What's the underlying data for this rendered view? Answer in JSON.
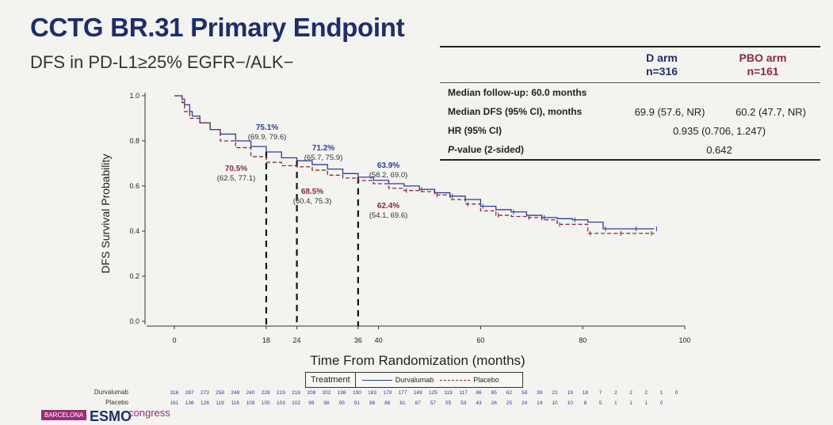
{
  "slide": {
    "title": "CCTG BR.31 Primary Endpoint",
    "subtitle": "DFS in PD-L1≥25% EGFR−/ALK−"
  },
  "stats_table": {
    "arm1_label": "D arm",
    "arm1_n": "n=316",
    "arm2_label": "PBO arm",
    "arm2_n": "n=161",
    "followup_label": "Median follow-up: 60.0 months",
    "median_dfs_label": "Median DFS (95% CI), months",
    "median_dfs_d": "69.9 (57.6, NR)",
    "median_dfs_pbo": "60.2 (47.7, NR)",
    "hr_label": "HR (95% CI)",
    "hr_value": "0.935 (0.706, 1.247)",
    "p_label_italic": "P",
    "p_label_rest": "-value (2-sided)",
    "p_value": "0.642"
  },
  "legend": {
    "title": "Treatment",
    "durva": "Durvalumab",
    "placebo": "Placebo"
  },
  "risk_table": {
    "row_labels": [
      "Durvalumab",
      "Placebo"
    ],
    "durvalumab": [
      "316",
      "287",
      "273",
      "258",
      "248",
      "240",
      "228",
      "219",
      "216",
      "208",
      "202",
      "198",
      "190",
      "183",
      "179",
      "177",
      "149",
      "125",
      "119",
      "117",
      "86",
      "85",
      "62",
      "58",
      "39",
      "21",
      "19",
      "18",
      "7",
      "2",
      "2",
      "2",
      "1",
      "0"
    ],
    "placebo": [
      "161",
      "136",
      "128",
      "119",
      "116",
      "109",
      "105",
      "103",
      "102",
      "99",
      "98",
      "95",
      "91",
      "86",
      "86",
      "81",
      "67",
      "57",
      "55",
      "53",
      "43",
      "26",
      "25",
      "24",
      "14",
      "10",
      "10",
      "8",
      "5",
      "1",
      "1",
      "1",
      "0"
    ]
  },
  "branding": {
    "city": "BARCELONA",
    "org": "ESMO",
    "event": "congress"
  },
  "colors": {
    "durvalumab": "#2c3da0",
    "placebo": "#8a2a3a",
    "title": "#1f2d6b"
  },
  "chart_data": {
    "type": "line",
    "xlabel": "Time From Randomization (months)",
    "ylabel": "DFS Survival Probability",
    "xlim": [
      0,
      100
    ],
    "ylim": [
      0,
      1.0
    ],
    "x_ticks": [
      0,
      18,
      24,
      36,
      40,
      60,
      80,
      100
    ],
    "y_ticks": [
      0.0,
      0.2,
      0.4,
      0.6,
      0.8,
      1.0
    ],
    "y_tick_labels": [
      "0.0",
      "0.2",
      "0.4",
      "0.6",
      "0.8",
      "1.0"
    ],
    "series": [
      {
        "name": "Durvalumab",
        "x": [
          0,
          1.5,
          2,
          3,
          3.5,
          5,
          7,
          9,
          12,
          15,
          18,
          21,
          24,
          27,
          30,
          33,
          36,
          39,
          42,
          45,
          48,
          51,
          54,
          57,
          60,
          63,
          66,
          69,
          72,
          75,
          78,
          81,
          84,
          87,
          90,
          93,
          94
        ],
        "y": [
          1.0,
          0.985,
          0.96,
          0.93,
          0.91,
          0.88,
          0.85,
          0.83,
          0.8,
          0.775,
          0.751,
          0.725,
          0.712,
          0.695,
          0.675,
          0.655,
          0.639,
          0.625,
          0.61,
          0.6,
          0.585,
          0.57,
          0.555,
          0.54,
          0.51,
          0.495,
          0.485,
          0.47,
          0.46,
          0.455,
          0.45,
          0.44,
          0.41,
          0.41,
          0.41,
          0.41,
          0.41
        ]
      },
      {
        "name": "Placebo",
        "x": [
          0,
          1.5,
          2,
          3,
          5,
          7,
          9,
          12,
          15,
          18,
          21,
          24,
          27,
          30,
          33,
          36,
          39,
          42,
          45,
          48,
          51,
          54,
          57,
          60,
          63,
          66,
          69,
          72,
          75,
          78,
          81,
          84,
          87,
          90,
          93,
          94
        ],
        "y": [
          1.0,
          0.97,
          0.93,
          0.9,
          0.88,
          0.85,
          0.8,
          0.77,
          0.73,
          0.705,
          0.69,
          0.685,
          0.67,
          0.648,
          0.635,
          0.624,
          0.61,
          0.59,
          0.58,
          0.575,
          0.56,
          0.54,
          0.52,
          0.49,
          0.47,
          0.465,
          0.46,
          0.45,
          0.43,
          0.43,
          0.39,
          0.39,
          0.39,
          0.39,
          0.39,
          0.39
        ]
      }
    ],
    "annotations": [
      {
        "arm": "durvalumab",
        "x": 18,
        "label": "75.1%",
        "ci": "(69.9, 79.6)"
      },
      {
        "arm": "placebo",
        "x": 18,
        "label": "70.5%",
        "ci": "(62.5, 77.1)"
      },
      {
        "arm": "durvalumab",
        "x": 24,
        "label": "71.2%",
        "ci": "(65.7, 75.9)"
      },
      {
        "arm": "placebo",
        "x": 24,
        "label": "68.5%",
        "ci": "(60.4, 75.3)"
      },
      {
        "arm": "durvalumab",
        "x": 36,
        "label": "63.9%",
        "ci": "(58.2, 69.0)"
      },
      {
        "arm": "placebo",
        "x": 36,
        "label": "62.4%",
        "ci": "(54.1, 69.6)"
      }
    ],
    "vlines": [
      18,
      24,
      36
    ]
  }
}
